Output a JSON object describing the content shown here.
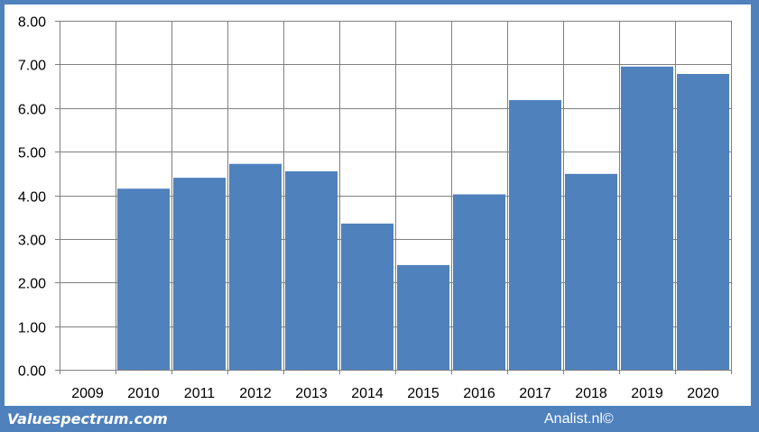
{
  "chart_data": {
    "type": "bar",
    "categories": [
      "2009",
      "2010",
      "2011",
      "2012",
      "2013",
      "2014",
      "2015",
      "2016",
      "2017",
      "2018",
      "2019",
      "2020"
    ],
    "values": [
      null,
      4.15,
      4.4,
      4.72,
      4.55,
      3.35,
      2.4,
      4.02,
      6.18,
      4.49,
      6.95,
      6.78
    ],
    "yticks": [
      "0.00",
      "1.00",
      "2.00",
      "3.00",
      "4.00",
      "5.00",
      "6.00",
      "7.00",
      "8.00"
    ],
    "ylim": [
      0,
      8
    ],
    "title": "",
    "xlabel": "",
    "ylabel": "",
    "grid": true,
    "bar_color": "#4f81bd",
    "frame_color": "#4f81bd",
    "grid_color": "#808080"
  },
  "footer": {
    "brand": "Valuespectrum.com",
    "credit": "Analist.nl©"
  }
}
